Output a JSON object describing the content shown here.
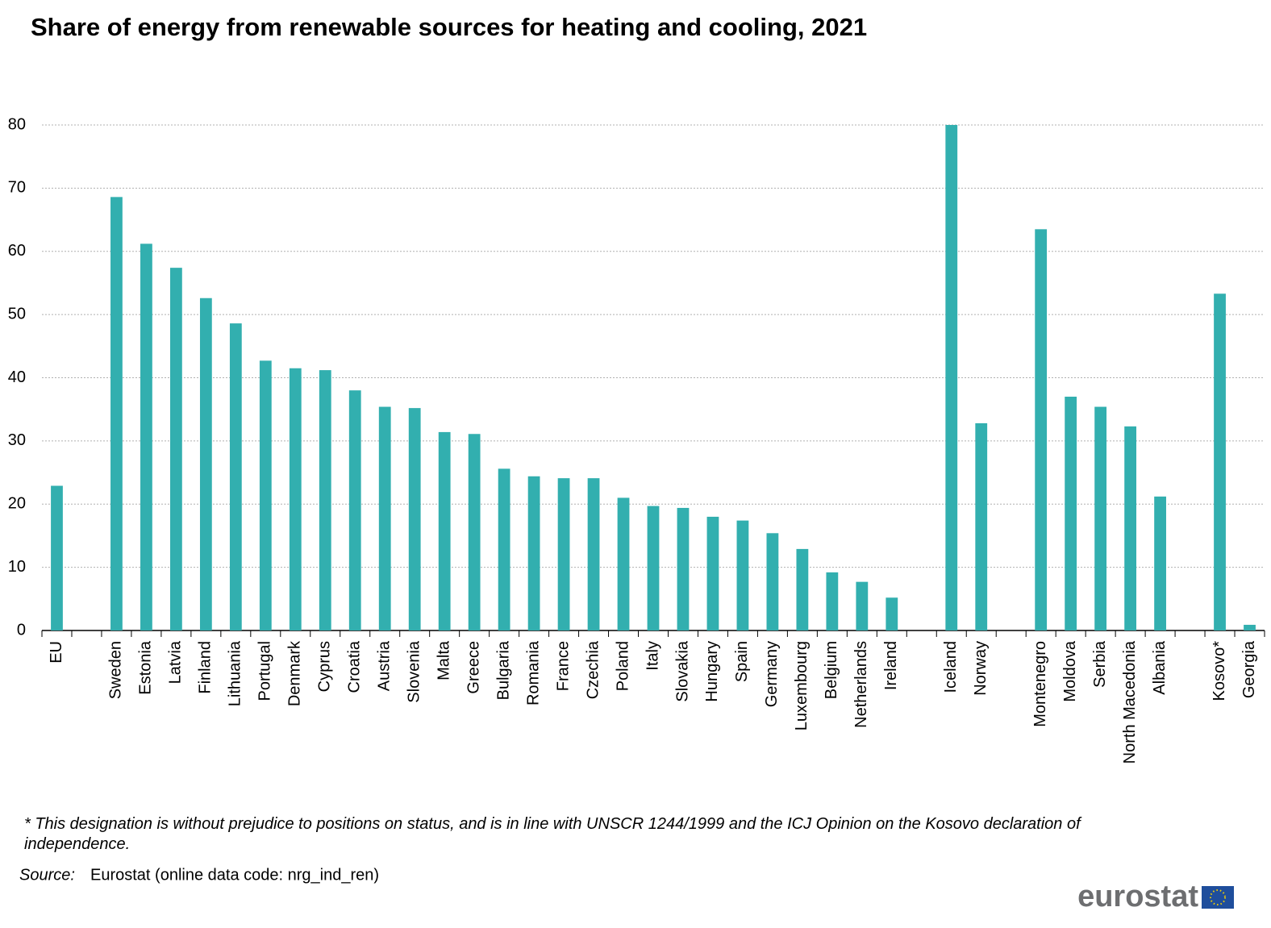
{
  "chart_data": {
    "type": "bar",
    "title": "Share of energy from renewable sources for heating and cooling, 2021",
    "categories": [
      "EU",
      null,
      "Sweden",
      "Estonia",
      "Latvia",
      "Finland",
      "Lithuania",
      "Portugal",
      "Denmark",
      "Cyprus",
      "Croatia",
      "Austria",
      "Slovenia",
      "Malta",
      "Greece",
      "Bulgaria",
      "Romania",
      "France",
      "Czechia",
      "Poland",
      "Italy",
      "Slovakia",
      "Hungary",
      "Spain",
      "Germany",
      "Luxembourg",
      "Belgium",
      "Netherlands",
      "Ireland",
      null,
      "Iceland",
      "Norway",
      null,
      "Montenegro",
      "Moldova",
      "Serbia",
      "North Macedonia",
      "Albania",
      null,
      "Kosovo*",
      "Georgia"
    ],
    "values": [
      22.9,
      null,
      68.6,
      61.2,
      57.4,
      52.6,
      48.6,
      42.7,
      41.5,
      41.2,
      38.0,
      35.4,
      35.2,
      31.4,
      31.1,
      25.6,
      24.4,
      24.1,
      24.1,
      21.0,
      19.7,
      19.4,
      18.0,
      17.4,
      15.4,
      12.9,
      9.2,
      7.7,
      5.2,
      null,
      80,
      32.8,
      null,
      63.5,
      37.0,
      35.4,
      32.3,
      21.2,
      null,
      53.3,
      0.9
    ],
    "color": "#32afaf",
    "ylim": [
      0,
      80
    ],
    "yticks": [
      0,
      10,
      20,
      30,
      40,
      50,
      60,
      70,
      80
    ],
    "grid": true,
    "footnote": "* This designation is without prejudice to positions on status, and is in line with UNSCR 1244/1999 and the ICJ Opinion on the Kosovo declaration of independence.",
    "source_label": "Source:",
    "source": "Eurostat (online data code: nrg_ind_ren)",
    "logo": "eurostat"
  }
}
